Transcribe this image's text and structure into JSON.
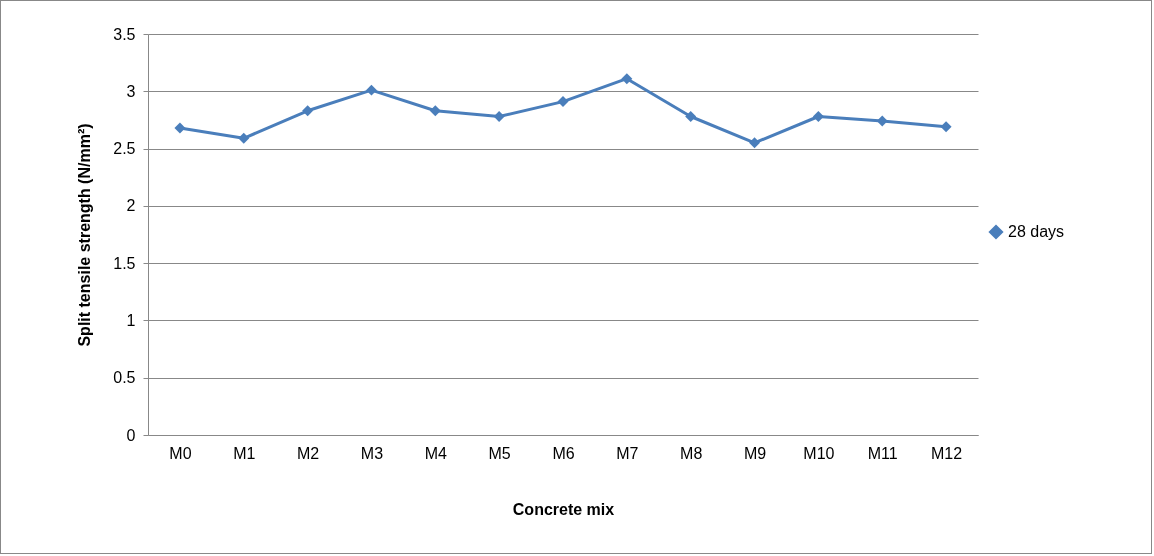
{
  "chart_data": {
    "type": "line",
    "xlabel": "Concrete mix",
    "ylabel": "Split tensile strength (N/mm²)",
    "categories": [
      "M0",
      "M1",
      "M2",
      "M3",
      "M4",
      "M5",
      "M6",
      "M7",
      "M8",
      "M9",
      "M10",
      "M11",
      "M12"
    ],
    "series": [
      {
        "name": "28 days",
        "color": "#4a7ebb",
        "values": [
          2.68,
          2.59,
          2.83,
          3.01,
          2.83,
          2.78,
          2.91,
          3.11,
          2.78,
          2.55,
          2.78,
          2.74,
          2.69
        ]
      }
    ],
    "ylim": [
      0,
      3.5
    ],
    "yticks": [
      0,
      0.5,
      1,
      1.5,
      2,
      2.5,
      3,
      3.5
    ],
    "grid": "y",
    "legend": "right",
    "marker": "diamond",
    "line_style": "solid"
  }
}
